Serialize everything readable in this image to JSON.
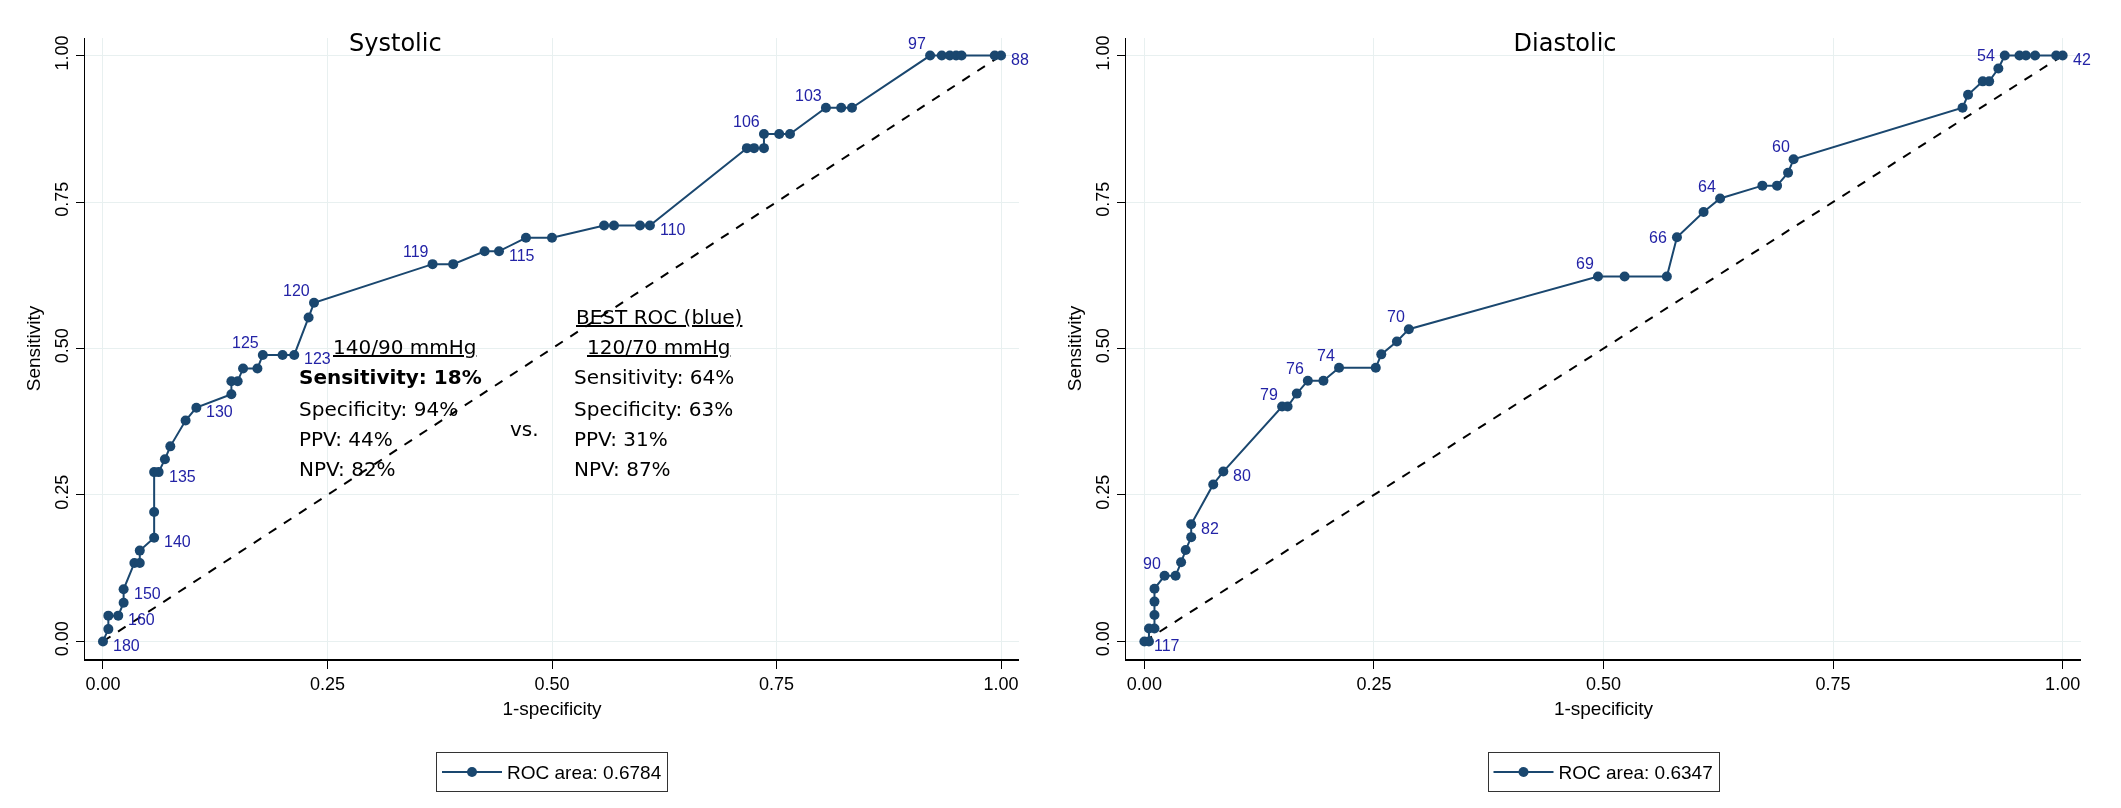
{
  "chart_data": [
    {
      "type": "line",
      "title": "Systolic",
      "xlabel": "1-specificity",
      "ylabel": "Sensitivity",
      "xlim": [
        -0.02,
        1.02
      ],
      "ylim": [
        -0.03,
        1.03
      ],
      "xticks": [
        {
          "value": 0,
          "label": "0.00"
        },
        {
          "value": 0.25,
          "label": "0.25"
        },
        {
          "value": 0.5,
          "label": "0.50"
        },
        {
          "value": 0.75,
          "label": "0.75"
        },
        {
          "value": 1,
          "label": "1.00"
        }
      ],
      "yticks": [
        {
          "value": 0,
          "label": "0.00"
        },
        {
          "value": 0.25,
          "label": "0.25"
        },
        {
          "value": 0.5,
          "label": "0.50"
        },
        {
          "value": 0.75,
          "label": "0.75"
        },
        {
          "value": 1,
          "label": "1.00"
        }
      ],
      "grid": true,
      "legend": "bottom",
      "series": [
        {
          "name": "ROC area: 0.6784",
          "color": "#1a476f",
          "marker": "circle",
          "line_style": "solid",
          "x": [
            0,
            0.006,
            0.006,
            0.017,
            0.023,
            0.023,
            0.035,
            0.041,
            0.041,
            0.057,
            0.057,
            0.057,
            0.062,
            0.069,
            0.075,
            0.092,
            0.104,
            0.143,
            0.143,
            0.15,
            0.156,
            0.172,
            0.178,
            0.2,
            0.213,
            0.229,
            0.235,
            0.367,
            0.39,
            0.425,
            0.441,
            0.471,
            0.5,
            0.558,
            0.569,
            0.598,
            0.609,
            0.717,
            0.725,
            0.736,
            0.736,
            0.753,
            0.765,
            0.805,
            0.822,
            0.834,
            0.921,
            0.934,
            0.943,
            0.95,
            0.956,
            0.993,
            1
          ],
          "values": [
            0,
            0.021,
            0.044,
            0.044,
            0.066,
            0.089,
            0.134,
            0.134,
            0.155,
            0.177,
            0.221,
            0.289,
            0.289,
            0.311,
            0.333,
            0.377,
            0.399,
            0.422,
            0.444,
            0.444,
            0.466,
            0.466,
            0.489,
            0.489,
            0.489,
            0.553,
            0.578,
            0.644,
            0.644,
            0.666,
            0.666,
            0.689,
            0.689,
            0.71,
            0.71,
            0.71,
            0.71,
            0.842,
            0.842,
            0.842,
            0.866,
            0.866,
            0.866,
            0.911,
            0.911,
            0.911,
            1,
            1,
            1,
            1,
            1,
            1,
            1
          ]
        },
        {
          "color": "#000000",
          "marker": "none",
          "line_style": "dashed",
          "x": [
            0,
            1
          ],
          "values": [
            0,
            1
          ]
        }
      ],
      "annotations": [
        {
          "text": "180",
          "x": 0,
          "y": 0
        },
        {
          "text": "160",
          "x": 0.017,
          "y": 0.044
        },
        {
          "text": "150",
          "x": 0.023,
          "y": 0.089
        },
        {
          "text": "140",
          "x": 0.057,
          "y": 0.177
        },
        {
          "text": "135",
          "x": 0.062,
          "y": 0.289
        },
        {
          "text": "130",
          "x": 0.104,
          "y": 0.399
        },
        {
          "text": "125",
          "x": 0.178,
          "y": 0.489
        },
        {
          "text": "123",
          "x": 0.213,
          "y": 0.489
        },
        {
          "text": "120",
          "x": 0.235,
          "y": 0.578
        },
        {
          "text": "119",
          "x": 0.367,
          "y": 0.644
        },
        {
          "text": "115",
          "x": 0.441,
          "y": 0.666
        },
        {
          "text": "110",
          "x": 0.609,
          "y": 0.71
        },
        {
          "text": "106",
          "x": 0.736,
          "y": 0.866
        },
        {
          "text": "103",
          "x": 0.805,
          "y": 0.911
        },
        {
          "text": "97",
          "x": 0.921,
          "y": 1
        },
        {
          "text": "88",
          "x": 1,
          "y": 1
        },
        "140/90 mmHg",
        "Sensitivity: 18%",
        "Specificity: 94%",
        "PPV: 44%",
        "NPV: 82%",
        "vs.",
        "BEST ROC (blue)",
        "120/70 mmHg",
        "Sensitivity: 64%",
        "Specificity: 63%",
        "PPV: 31%",
        "NPV: 87%"
      ]
    },
    {
      "type": "line",
      "title": "Diastolic",
      "xlabel": "1-specificity",
      "ylabel": "Sensitivity",
      "xlim": [
        -0.02,
        1.02
      ],
      "ylim": [
        -0.03,
        1.03
      ],
      "xticks": [
        {
          "value": 0,
          "label": "0.00"
        },
        {
          "value": 0.25,
          "label": "0.25"
        },
        {
          "value": 0.5,
          "label": "0.50"
        },
        {
          "value": 0.75,
          "label": "0.75"
        },
        {
          "value": 1,
          "label": "1.00"
        }
      ],
      "yticks": [
        {
          "value": 0,
          "label": "0.00"
        },
        {
          "value": 0.25,
          "label": "0.25"
        },
        {
          "value": 0.5,
          "label": "0.50"
        },
        {
          "value": 0.75,
          "label": "0.75"
        },
        {
          "value": 1,
          "label": "1.00"
        }
      ],
      "grid": true,
      "legend": "bottom",
      "series": [
        {
          "name": "ROC area: 0.6347",
          "color": "#1a476f",
          "marker": "circle",
          "line_style": "solid",
          "x": [
            0,
            0.005,
            0.005,
            0.011,
            0.011,
            0.011,
            0.011,
            0.022,
            0.034,
            0.04,
            0.045,
            0.051,
            0.051,
            0.075,
            0.086,
            0.15,
            0.156,
            0.166,
            0.178,
            0.195,
            0.212,
            0.252,
            0.258,
            0.275,
            0.288,
            0.494,
            0.523,
            0.569,
            0.58,
            0.609,
            0.627,
            0.673,
            0.689,
            0.701,
            0.707,
            0.891,
            0.897,
            0.913,
            0.92,
            0.93,
            0.937,
            0.953,
            0.96,
            0.97,
            0.993,
            1
          ],
          "values": [
            0,
            0,
            0.022,
            0.022,
            0.045,
            0.068,
            0.09,
            0.112,
            0.112,
            0.135,
            0.156,
            0.178,
            0.2,
            0.268,
            0.29,
            0.401,
            0.401,
            0.423,
            0.445,
            0.445,
            0.467,
            0.467,
            0.49,
            0.512,
            0.533,
            0.623,
            0.623,
            0.623,
            0.69,
            0.733,
            0.756,
            0.778,
            0.778,
            0.8,
            0.823,
            0.911,
            0.933,
            0.956,
            0.956,
            0.978,
            1,
            1,
            1,
            1,
            1,
            1
          ]
        },
        {
          "color": "#000000",
          "marker": "none",
          "line_style": "dashed",
          "x": [
            0,
            1
          ],
          "values": [
            0,
            1
          ]
        }
      ],
      "annotations": [
        {
          "text": "117",
          "x": 0,
          "y": 0
        },
        {
          "text": "90",
          "x": 0.022,
          "y": 0.112
        },
        {
          "text": "82",
          "x": 0.051,
          "y": 0.2
        },
        {
          "text": "80",
          "x": 0.086,
          "y": 0.29
        },
        {
          "text": "79",
          "x": 0.15,
          "y": 0.401
        },
        {
          "text": "76",
          "x": 0.178,
          "y": 0.445
        },
        {
          "text": "74",
          "x": 0.212,
          "y": 0.467
        },
        {
          "text": "70",
          "x": 0.288,
          "y": 0.533
        },
        {
          "text": "69",
          "x": 0.494,
          "y": 0.623
        },
        {
          "text": "66",
          "x": 0.58,
          "y": 0.69
        },
        {
          "text": "64",
          "x": 0.627,
          "y": 0.756
        },
        {
          "text": "60",
          "x": 0.707,
          "y": 0.823
        },
        {
          "text": "54",
          "x": 0.937,
          "y": 1
        },
        {
          "text": "42",
          "x": 1,
          "y": 1
        }
      ]
    }
  ]
}
